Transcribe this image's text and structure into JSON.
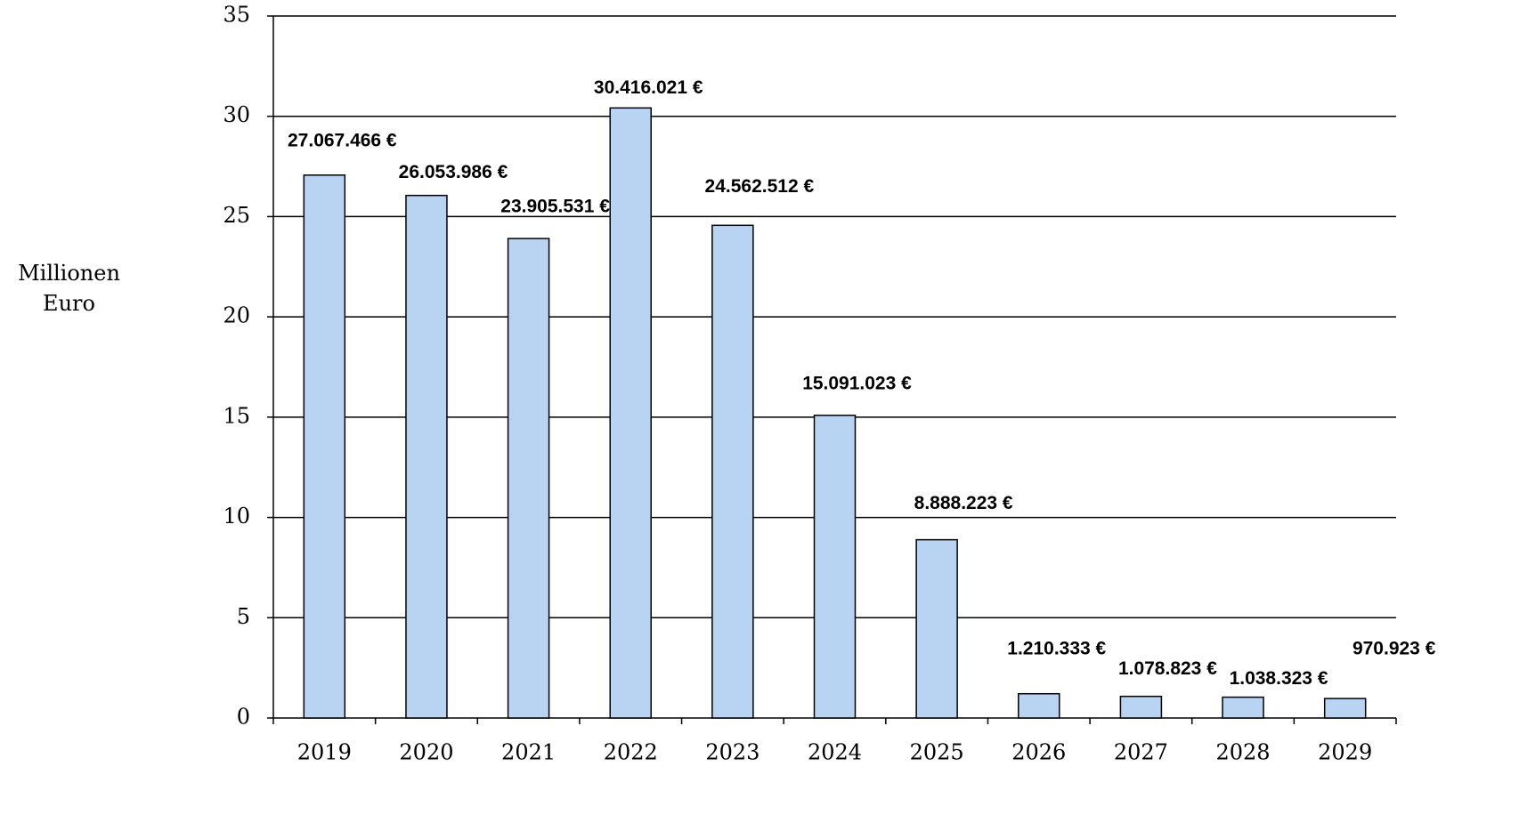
{
  "chart_data": {
    "type": "bar",
    "ylabel": "Millionen Euro",
    "categories": [
      "2019",
      "2020",
      "2021",
      "2022",
      "2023",
      "2024",
      "2025",
      "2026",
      "2027",
      "2028",
      "2029"
    ],
    "values": [
      27.067466,
      26.053986,
      23.905531,
      30.416021,
      24.562512,
      15.091023,
      8.888223,
      1.210333,
      1.078823,
      1.038323,
      0.970923
    ],
    "value_labels": [
      "27.067.466 €",
      "26.053.986 €",
      "23.905.531 €",
      "30.416.021 €",
      "24.562.512 €",
      "15.091.023 €",
      "8.888.223 €",
      "1.210.333 €",
      "1.078.823 €",
      "1.038.323 €",
      "970.923 €"
    ],
    "color": "#b9d3f3",
    "ylim": [
      0,
      35
    ],
    "yticks": [
      0,
      5,
      10,
      15,
      20,
      25,
      30,
      35
    ],
    "grid": true
  }
}
